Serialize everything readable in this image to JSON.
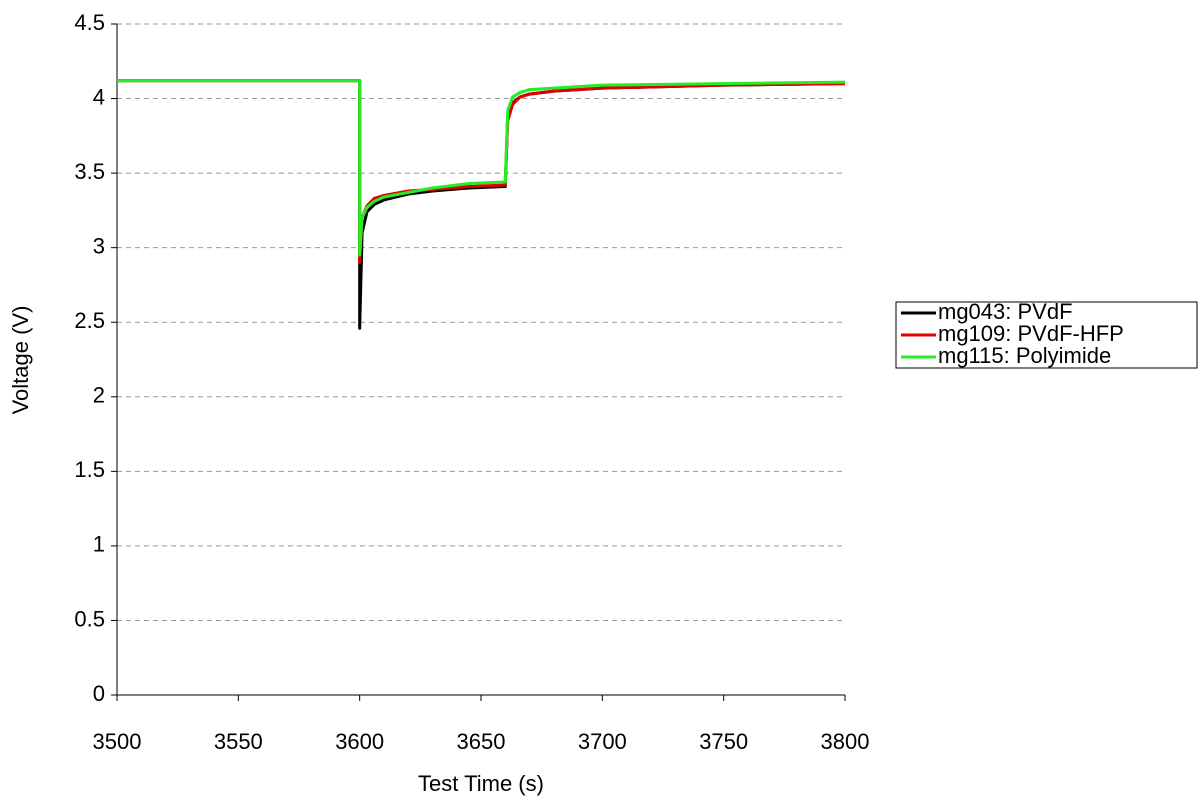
{
  "chart_data": {
    "type": "line",
    "x_label": "Test Time (s)",
    "y_label": "Voltage (V)",
    "x": [
      3500,
      3600,
      3600,
      3601,
      3603,
      3606,
      3610,
      3620,
      3630,
      3645,
      3660,
      3660,
      3661,
      3663,
      3666,
      3670,
      3680,
      3700,
      3750,
      3800
    ],
    "series": [
      {
        "name": "mg043: PVdF",
        "color": "#000000",
        "values": [
          4.12,
          4.12,
          2.46,
          3.1,
          3.24,
          3.29,
          3.32,
          3.36,
          3.38,
          3.4,
          3.41,
          3.42,
          3.88,
          3.97,
          4.01,
          4.03,
          4.05,
          4.07,
          4.09,
          4.1
        ]
      },
      {
        "name": "mg109: PVdF-HFP",
        "color": "#e00000",
        "values": [
          4.12,
          4.12,
          2.9,
          3.2,
          3.28,
          3.33,
          3.35,
          3.38,
          3.39,
          3.41,
          3.42,
          3.42,
          3.85,
          3.96,
          4.01,
          4.03,
          4.05,
          4.07,
          4.09,
          4.1
        ]
      },
      {
        "name": "mg115: Polyimide",
        "color": "#22ee22",
        "values": [
          4.12,
          4.12,
          2.95,
          3.2,
          3.27,
          3.31,
          3.34,
          3.37,
          3.4,
          3.43,
          3.44,
          3.44,
          3.92,
          4.01,
          4.04,
          4.06,
          4.07,
          4.09,
          4.1,
          4.11
        ]
      }
    ],
    "xlim": [
      3500,
      3800
    ],
    "xticks": [
      3500,
      3550,
      3600,
      3650,
      3700,
      3750,
      3800
    ],
    "ylim": [
      0,
      4.5
    ],
    "yticks": [
      0,
      0.5,
      1,
      1.5,
      2,
      2.5,
      3,
      3.5,
      4,
      4.5
    ],
    "grid": true,
    "legend": "right"
  }
}
